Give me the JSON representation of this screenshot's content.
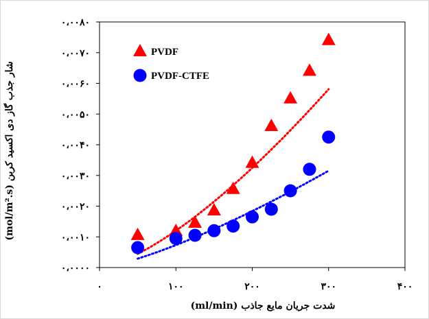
{
  "chart_data": {
    "type": "scatter",
    "xlabel": "شدت جریان مایع جاذب (ml/min)",
    "ylabel": "شار جذب گاز دی اکسید کربن (mol/m².s)",
    "xlim": [
      0,
      400
    ],
    "ylim": [
      0,
      0.008
    ],
    "x_ticks": [
      0,
      100,
      200,
      300,
      400
    ],
    "x_tick_labels": [
      "۰",
      "۱۰۰",
      "۲۰۰",
      "۳۰۰",
      "۴۰۰"
    ],
    "y_ticks": [
      0,
      0.001,
      0.002,
      0.003,
      0.004,
      0.005,
      0.006,
      0.007,
      0.008
    ],
    "y_tick_labels": [
      "۰،۰۰۰۰",
      "۰،۰۰۱۰",
      "۰،۰۰۲۰",
      "۰،۰۰۳۰",
      "۰،۰۰۴۰",
      "۰،۰۰۵۰",
      "۰،۰۰۶۰",
      "۰،۰۰۷۰",
      "۰،۰۰۸۰"
    ],
    "grid": false,
    "legend_position": "top-left",
    "series": [
      {
        "name": "PVDF",
        "marker": "triangle",
        "color": "#ff0000",
        "trendline": "dotted",
        "x": [
          50,
          100,
          125,
          150,
          175,
          200,
          225,
          250,
          275,
          300
        ],
        "y": [
          0.00105,
          0.00118,
          0.00145,
          0.00185,
          0.00255,
          0.0034,
          0.0046,
          0.0055,
          0.0064,
          0.0074
        ],
        "trend": {
          "type": "power",
          "a": 1.62e-06,
          "b": 1.435
        }
      },
      {
        "name": "PVDF-CTFE",
        "marker": "circle",
        "color": "#0000ff",
        "trendline": "dotted",
        "x": [
          50,
          100,
          125,
          150,
          175,
          200,
          225,
          250,
          275,
          300
        ],
        "y": [
          0.00065,
          0.00095,
          0.00105,
          0.0012,
          0.00135,
          0.00165,
          0.0019,
          0.0025,
          0.0032,
          0.00425
        ],
        "trend": {
          "type": "power",
          "a": 1.6e-06,
          "b": 1.33
        }
      }
    ]
  }
}
